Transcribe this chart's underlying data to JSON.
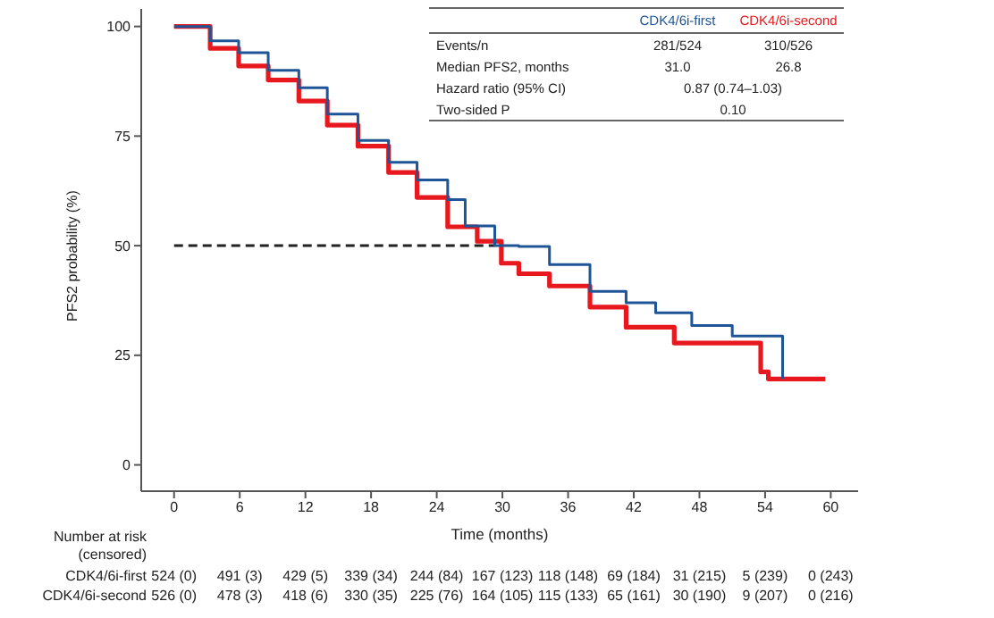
{
  "chart_data": {
    "type": "step",
    "xlabel": "Time (months)",
    "ylabel": "PFS2 probability (%)",
    "series": [
      {
        "name": "CDK4/6i-first",
        "color": "#1f5596",
        "x": [
          0,
          3.3,
          5.9,
          8.6,
          11.4,
          14,
          16.8,
          19.6,
          22.2,
          25,
          26.6,
          29.3,
          31.5,
          34.3,
          38,
          41.3,
          44,
          47.3,
          51,
          55.6,
          55.6
        ],
        "values": [
          100,
          96.7,
          94,
          90,
          86,
          80,
          74,
          69,
          65,
          60.5,
          54.5,
          50,
          49.8,
          45.7,
          39.6,
          37,
          34.7,
          31.8,
          29.4,
          29.4,
          19.6
        ]
      },
      {
        "name": "CDK4/6i-second",
        "color": "#e8191e",
        "x": [
          0,
          3.3,
          5.9,
          8.6,
          11.4,
          14,
          16.8,
          19.6,
          22.2,
          25,
          27.7,
          29.9,
          31.5,
          34.3,
          38,
          41.3,
          45.7,
          53,
          53.6,
          54.3,
          59.5
        ],
        "values": [
          100,
          95,
          91,
          87.8,
          83,
          77.5,
          72.7,
          66.7,
          61,
          54.3,
          51,
          46,
          43.6,
          40.8,
          36,
          31.4,
          27.8,
          27.8,
          21.2,
          19.6,
          19.6
        ]
      }
    ],
    "xlim": [
      -3,
      62.5
    ],
    "xticks": [
      0,
      6,
      12,
      18,
      24,
      30,
      36,
      42,
      48,
      54,
      60
    ],
    "ylim": [
      -6,
      104
    ],
    "yticks": [
      0,
      25,
      50,
      75,
      100
    ],
    "ref_lines": [
      {
        "axis": "y",
        "value": 50,
        "line_style": "dashed",
        "color": "#222222"
      }
    ],
    "grid": false,
    "legend": "top right",
    "marker": "none",
    "line_style": "solid",
    "annotations": [
      "Events/n",
      "281/524",
      "310/526",
      "Median PFS2, months",
      "31.0",
      "26.8",
      "Hazard ratio (95% CI)",
      "0.87 (0.74–1.03)",
      "Two-sided P",
      "0.10",
      "Number at risk (censored)",
      "524 (0)",
      "491 (3)",
      "429 (5)",
      "339 (34)",
      "244 (84)",
      "167 (123)",
      "118 (148)",
      "69 (184)",
      "31 (215)",
      "5 (239)",
      "0 (243)",
      "526 (0)",
      "478 (3)",
      "418 (6)",
      "330 (35)",
      "225 (76)",
      "164 (105)",
      "115 (133)",
      "65 (161)",
      "30 (190)",
      "9 (207)",
      "0 (216)"
    ]
  }
}
